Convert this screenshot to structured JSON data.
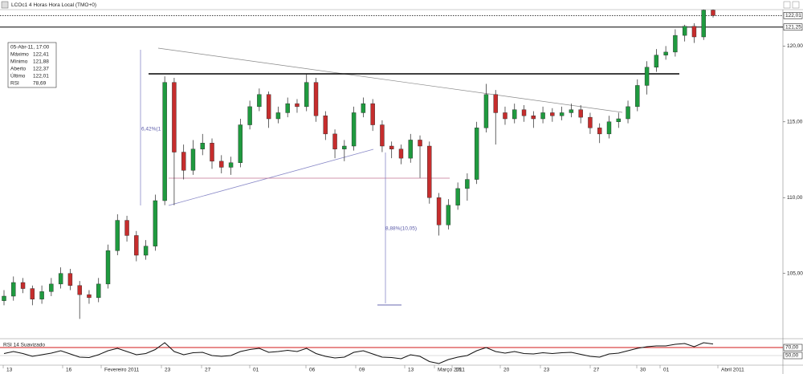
{
  "chart_data": {
    "type": "candlestick",
    "title": "LCOc1 4 Horas Hora Local (TMO+0)",
    "ylim": [
      100.8,
      122.4
    ],
    "yticks": [
      {
        "value": 105,
        "label": "105,00"
      },
      {
        "value": 110,
        "label": "110,00"
      },
      {
        "value": 115,
        "label": "115,00"
      },
      {
        "value": 120,
        "label": "120,00"
      }
    ],
    "price_lines": [
      {
        "value": 122.01,
        "label": "122,01"
      },
      {
        "value": 121.25,
        "label": "121,25"
      }
    ],
    "up_color": "#1f9a3f",
    "down_color": "#c62d2d",
    "ohlc": [
      [
        103.2,
        103.9,
        102.9,
        103.5
      ],
      [
        103.5,
        104.8,
        103.2,
        104.4
      ],
      [
        104.4,
        104.7,
        103.7,
        104.0
      ],
      [
        104.0,
        104.2,
        102.9,
        103.3
      ],
      [
        103.3,
        104.2,
        103.0,
        103.8
      ],
      [
        103.8,
        104.7,
        103.5,
        104.3
      ],
      [
        104.3,
        105.4,
        104.0,
        105.0
      ],
      [
        105.0,
        105.3,
        103.9,
        104.2
      ],
      [
        104.2,
        104.5,
        102.0,
        103.6
      ],
      [
        103.6,
        103.9,
        103.0,
        103.4
      ],
      [
        103.4,
        104.7,
        103.1,
        104.3
      ],
      [
        104.3,
        106.9,
        104.0,
        106.5
      ],
      [
        106.5,
        108.9,
        106.2,
        108.5
      ],
      [
        108.5,
        108.8,
        107.1,
        107.5
      ],
      [
        107.5,
        107.8,
        105.8,
        106.2
      ],
      [
        106.2,
        107.2,
        105.9,
        106.8
      ],
      [
        106.8,
        110.2,
        106.5,
        109.8
      ],
      [
        109.8,
        118.0,
        109.5,
        117.6
      ],
      [
        117.6,
        117.9,
        109.5,
        113.0
      ],
      [
        113.0,
        113.5,
        111.2,
        111.8
      ],
      [
        111.8,
        113.8,
        111.5,
        113.2
      ],
      [
        113.2,
        114.2,
        112.8,
        113.6
      ],
      [
        113.6,
        113.9,
        111.9,
        112.4
      ],
      [
        112.4,
        112.8,
        111.6,
        112.0
      ],
      [
        112.0,
        112.7,
        111.5,
        112.3
      ],
      [
        112.3,
        115.2,
        112.0,
        114.8
      ],
      [
        114.8,
        116.4,
        114.5,
        116.0
      ],
      [
        116.0,
        117.2,
        115.7,
        116.8
      ],
      [
        116.8,
        117.0,
        114.6,
        115.2
      ],
      [
        115.2,
        116.0,
        114.9,
        115.6
      ],
      [
        115.6,
        116.6,
        115.3,
        116.2
      ],
      [
        116.2,
        116.5,
        115.6,
        116.0
      ],
      [
        116.0,
        118.2,
        115.7,
        117.6
      ],
      [
        117.6,
        117.9,
        115.0,
        115.4
      ],
      [
        115.4,
        115.7,
        113.8,
        114.2
      ],
      [
        114.2,
        114.5,
        112.6,
        113.2
      ],
      [
        113.2,
        113.8,
        112.4,
        113.4
      ],
      [
        113.4,
        116.0,
        113.1,
        115.6
      ],
      [
        115.6,
        116.6,
        115.3,
        116.2
      ],
      [
        116.2,
        116.5,
        114.4,
        114.8
      ],
      [
        114.8,
        115.1,
        113.0,
        113.4
      ],
      [
        113.4,
        113.7,
        112.6,
        113.2
      ],
      [
        113.2,
        113.5,
        112.2,
        112.6
      ],
      [
        112.6,
        114.2,
        112.3,
        113.8
      ],
      [
        113.8,
        114.1,
        111.3,
        113.4
      ],
      [
        113.4,
        113.7,
        109.6,
        110.0
      ],
      [
        110.0,
        110.3,
        107.5,
        108.2
      ],
      [
        108.2,
        109.9,
        107.9,
        109.5
      ],
      [
        109.5,
        111.0,
        109.2,
        110.6
      ],
      [
        110.6,
        111.6,
        109.8,
        111.2
      ],
      [
        111.2,
        115.0,
        110.9,
        114.6
      ],
      [
        114.6,
        117.5,
        114.3,
        116.8
      ],
      [
        116.8,
        117.1,
        113.5,
        115.6
      ],
      [
        115.6,
        116.0,
        114.8,
        115.2
      ],
      [
        115.2,
        116.2,
        114.9,
        115.8
      ],
      [
        115.8,
        116.1,
        115.0,
        115.4
      ],
      [
        115.4,
        115.7,
        114.6,
        115.2
      ],
      [
        115.2,
        116.0,
        114.9,
        115.6
      ],
      [
        115.6,
        115.9,
        115.0,
        115.4
      ],
      [
        115.4,
        116.0,
        115.1,
        115.6
      ],
      [
        115.6,
        116.2,
        115.3,
        115.8
      ],
      [
        115.8,
        116.1,
        114.9,
        115.3
      ],
      [
        115.3,
        115.6,
        114.2,
        114.6
      ],
      [
        114.6,
        114.9,
        113.6,
        114.2
      ],
      [
        114.2,
        115.4,
        113.9,
        115.0
      ],
      [
        115.0,
        115.6,
        114.6,
        115.2
      ],
      [
        115.2,
        116.4,
        114.9,
        116.0
      ],
      [
        116.0,
        117.8,
        115.7,
        117.4
      ],
      [
        117.4,
        119.0,
        116.8,
        118.6
      ],
      [
        118.6,
        119.8,
        118.3,
        119.4
      ],
      [
        119.4,
        120.0,
        119.1,
        119.6
      ],
      [
        119.6,
        121.1,
        119.3,
        120.7
      ],
      [
        120.7,
        121.4,
        120.3,
        121.3
      ],
      [
        121.3,
        121.5,
        120.2,
        120.6
      ],
      [
        120.6,
        122.41,
        120.4,
        122.37
      ],
      [
        122.37,
        122.41,
        121.88,
        122.01
      ]
    ],
    "rsi_label": "RSI 14 Suavizado",
    "rsi_color": "#111111",
    "rsi_level_color": "#d01818",
    "y2lim": [
      26,
      86
    ],
    "y2ticks": [
      {
        "value": 70,
        "label": "70,00"
      },
      {
        "value": 50,
        "label": "50,00"
      }
    ],
    "rsi": [
      55,
      60,
      55,
      48,
      52,
      56,
      62,
      54,
      46,
      45,
      52,
      62,
      68,
      60,
      52,
      55,
      65,
      82,
      60,
      52,
      57,
      58,
      50,
      48,
      50,
      60,
      65,
      68,
      58,
      60,
      63,
      60,
      68,
      55,
      48,
      44,
      46,
      58,
      62,
      54,
      46,
      45,
      42,
      52,
      48,
      35,
      30,
      40,
      46,
      50,
      62,
      70,
      60,
      56,
      60,
      55,
      54,
      57,
      55,
      57,
      58,
      53,
      48,
      46,
      54,
      56,
      62,
      68,
      72,
      74,
      74,
      78,
      80,
      72,
      82,
      78.69
    ],
    "x_labels": [
      "13",
      "16",
      "Fevereiro 2011",
      "23",
      "27",
      "01",
      "06",
      "09",
      "13",
      "Março 2011",
      "16",
      "20",
      "23",
      "27",
      "30",
      "01",
      "Abril 2011"
    ],
    "annotations": [
      "6,42%(1",
      "8,88%(10,05)"
    ],
    "info_box": {
      "date": "05-Abr-11, 17:00",
      "rows": [
        [
          "Máximo",
          "122,41"
        ],
        [
          "Mínimo",
          "121,88"
        ],
        [
          "Aberto",
          "122,37"
        ],
        [
          "Último",
          "122,01"
        ],
        [
          "RSI",
          "78,69"
        ]
      ]
    }
  }
}
